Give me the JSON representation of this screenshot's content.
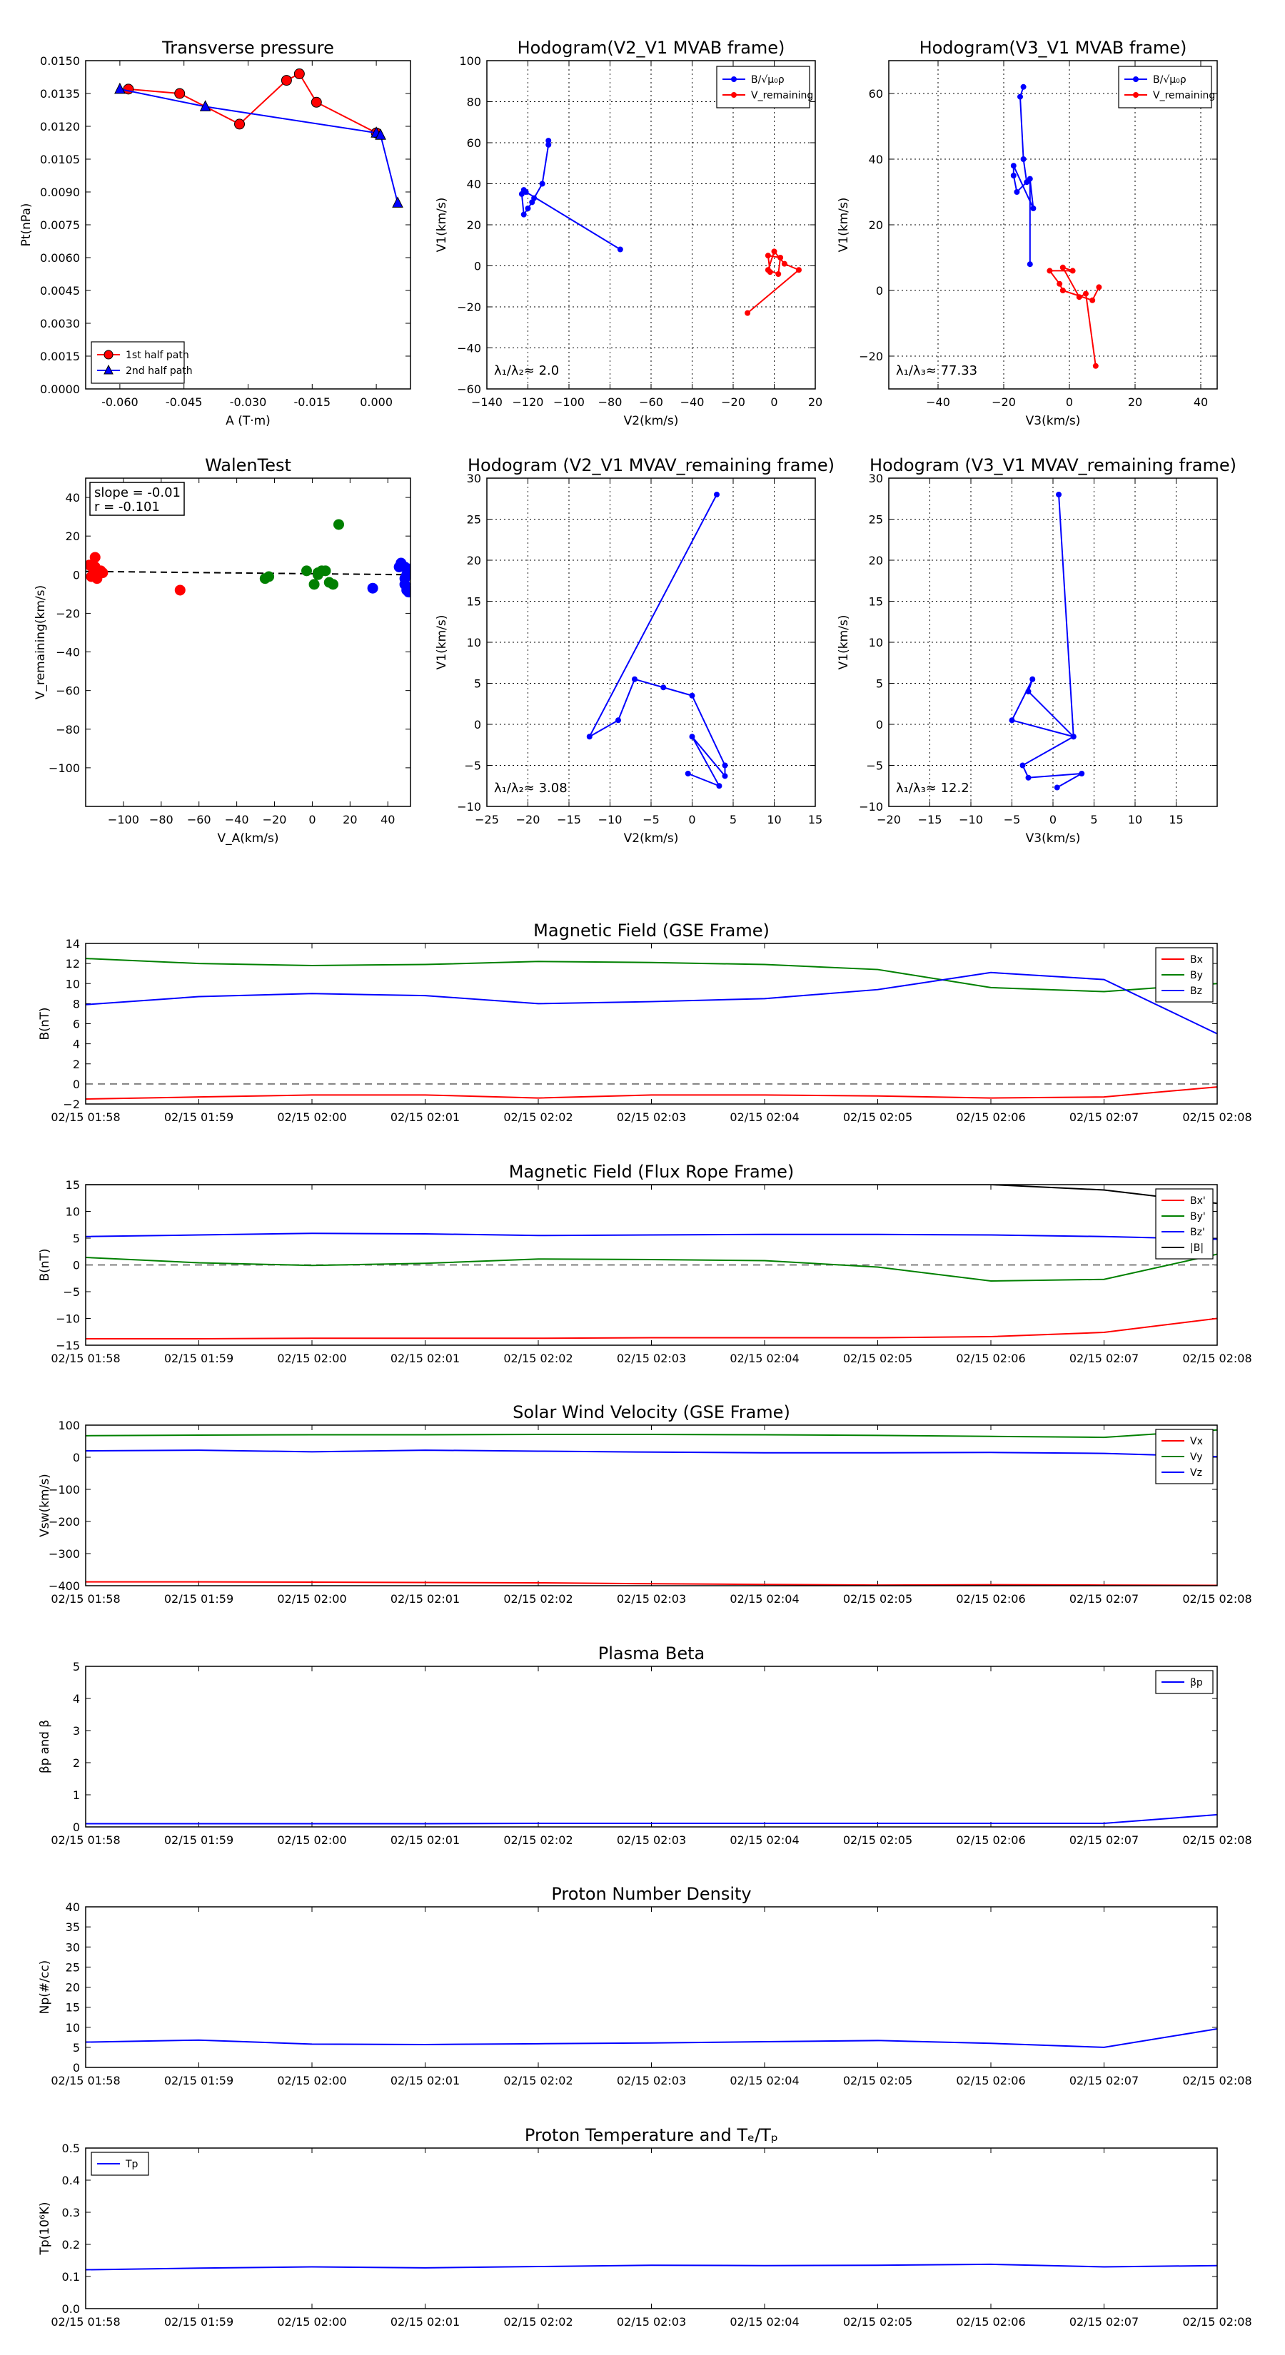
{
  "colors": {
    "blue": "#0000ff",
    "red": "#ff0000",
    "green": "#008000",
    "black": "#000000",
    "zero_line": "#808080"
  },
  "time_ticks": [
    "02/15 01:58",
    "02/15 01:59",
    "02/15 02:00",
    "02/15 02:01",
    "02/15 02:02",
    "02/15 02:03",
    "02/15 02:04",
    "02/15 02:05",
    "02/15 02:06",
    "02/15 02:07",
    "02/15 02:08"
  ],
  "chart_data": [
    {
      "id": "tp",
      "type": "line",
      "title": "Transverse pressure",
      "xlabel": "A (T·m)",
      "ylabel": "Pt(nPa)",
      "xlim": [
        -0.068,
        0.008
      ],
      "ylim": [
        0,
        0.015
      ],
      "xticks": [
        "-0.060",
        "-0.045",
        "-0.030",
        "-0.015",
        "0.000"
      ],
      "yticks": [
        "0.0000",
        "0.0015",
        "0.0030",
        "0.0045",
        "0.0060",
        "0.0075",
        "0.0090",
        "0.0105",
        "0.0120",
        "0.0135",
        "0.0150"
      ],
      "grid": false,
      "legend_position": "lower-left",
      "series": [
        {
          "name": "1st half path",
          "color": "red",
          "marker": "circle",
          "points": [
            [
              -0.058,
              0.0137
            ],
            [
              -0.046,
              0.0135
            ],
            [
              -0.032,
              0.0121
            ],
            [
              -0.021,
              0.0141
            ],
            [
              -0.018,
              0.0144
            ],
            [
              -0.014,
              0.0131
            ],
            [
              0.0,
              0.0117
            ]
          ]
        },
        {
          "name": "2nd half path",
          "color": "blue",
          "marker": "triangle",
          "points": [
            [
              -0.06,
              0.0137
            ],
            [
              -0.04,
              0.0129
            ],
            [
              0.0,
              0.0117
            ],
            [
              0.001,
              0.0116
            ],
            [
              0.005,
              0.0085
            ]
          ]
        }
      ]
    },
    {
      "id": "hodo_v2v1_mvab",
      "type": "line",
      "title": "Hodogram(V2_V1 MVAB frame)",
      "xlabel": "V2(km/s)",
      "ylabel": "V1(km/s)",
      "xlim": [
        -140,
        20
      ],
      "ylim": [
        -60,
        100
      ],
      "xticks": [
        "−140",
        "−120",
        "−100",
        "−80",
        "−60",
        "−40",
        "−20",
        "0",
        "20"
      ],
      "yticks": [
        "−60",
        "−40",
        "−20",
        "0",
        "20",
        "40",
        "60",
        "80",
        "100"
      ],
      "grid": true,
      "legend_position": "top-right",
      "annotation": "λ₁/λ₂≈ 2.0",
      "series": [
        {
          "name": "B/√μ₀ρ",
          "color": "blue",
          "points": [
            [
              -110,
              61
            ],
            [
              -110,
              59
            ],
            [
              -113,
              40
            ],
            [
              -117,
              33
            ],
            [
              -118,
              31
            ],
            [
              -120,
              28
            ],
            [
              -122,
              25
            ],
            [
              -123,
              35
            ],
            [
              -122,
              37
            ],
            [
              -121,
              36
            ],
            [
              -75,
              8
            ]
          ]
        },
        {
          "name": "V_remaining",
          "color": "red",
          "points": [
            [
              -13,
              -23
            ],
            [
              12,
              -2
            ],
            [
              5,
              1
            ],
            [
              0,
              7
            ],
            [
              -3,
              -2
            ],
            [
              2,
              -4
            ],
            [
              3,
              4
            ],
            [
              -3,
              5
            ],
            [
              -2,
              -3
            ]
          ]
        }
      ]
    },
    {
      "id": "hodo_v3v1_mvab",
      "type": "line",
      "title": "Hodogram(V3_V1 MVAB frame)",
      "xlabel": "V3(km/s)",
      "ylabel": "V1(km/s)",
      "xlim": [
        -55,
        45
      ],
      "ylim": [
        -30,
        70
      ],
      "xticks": [
        "−40",
        "−20",
        "0",
        "20",
        "40"
      ],
      "yticks": [
        "−20",
        "0",
        "20",
        "40",
        "60"
      ],
      "grid": true,
      "legend_position": "top-right",
      "annotation": "λ₁/λ₃≈ 77.33",
      "series": [
        {
          "name": "B/√μ₀ρ",
          "color": "blue",
          "points": [
            [
              -14,
              62
            ],
            [
              -15,
              59
            ],
            [
              -14,
              40
            ],
            [
              -13,
              33
            ],
            [
              -16,
              30
            ],
            [
              -17,
              35
            ],
            [
              -17,
              38
            ],
            [
              -11,
              25
            ],
            [
              -12,
              34
            ],
            [
              -12,
              8
            ]
          ]
        },
        {
          "name": "V_remaining",
          "color": "red",
          "points": [
            [
              8,
              -23
            ],
            [
              5,
              -1
            ],
            [
              3,
              -2
            ],
            [
              -2,
              7
            ],
            [
              1,
              6
            ],
            [
              -6,
              6
            ],
            [
              -3,
              2
            ],
            [
              -2,
              0
            ],
            [
              7,
              -3
            ],
            [
              9,
              1
            ]
          ]
        }
      ]
    },
    {
      "id": "walen",
      "type": "scatter",
      "title": "WalenTest",
      "xlabel": "V_A(km/s)",
      "ylabel": "V_remaining(km/s)",
      "xlim": [
        -120,
        52
      ],
      "ylim": [
        -120,
        50
      ],
      "xticks": [
        "−100",
        "−80",
        "−60",
        "−40",
        "−20",
        "0",
        "20",
        "40"
      ],
      "yticks": [
        "−100",
        "−80",
        "−60",
        "−40",
        "−20",
        "0",
        "20",
        "40"
      ],
      "grid": false,
      "fit_line": {
        "slope": -0.01,
        "intercept": 0.5
      },
      "annotation_lines": [
        "slope = -0.01",
        "r = -0.101"
      ],
      "groups": [
        {
          "color": "red",
          "points": [
            [
              -118,
              5
            ],
            [
              -116,
              3
            ],
            [
              -113,
              1
            ],
            [
              -114,
              -2
            ],
            [
              -115,
              4
            ],
            [
              -112,
              2
            ],
            [
              -117,
              -1
            ],
            [
              -115,
              9
            ],
            [
              -111,
              1
            ],
            [
              -116,
              0
            ],
            [
              -70,
              -8
            ]
          ]
        },
        {
          "color": "green",
          "points": [
            [
              -25,
              -2
            ],
            [
              -23,
              -1
            ],
            [
              -3,
              2
            ],
            [
              1,
              -5
            ],
            [
              3,
              1
            ],
            [
              5,
              2
            ],
            [
              7,
              2
            ],
            [
              9,
              -4
            ],
            [
              11,
              -5
            ],
            [
              14,
              26
            ],
            [
              3,
              0
            ]
          ]
        },
        {
          "color": "blue",
          "points": [
            [
              32,
              -7
            ],
            [
              46,
              4
            ],
            [
              47,
              6
            ],
            [
              49,
              4
            ],
            [
              49,
              -2
            ],
            [
              49,
              -5
            ],
            [
              50,
              -8
            ],
            [
              51,
              -9
            ],
            [
              52,
              3
            ],
            [
              50,
              0
            ]
          ]
        }
      ]
    },
    {
      "id": "hodo_v2v1_mvav",
      "type": "line",
      "title": "Hodogram (V2_V1 MVAV_remaining frame)",
      "xlabel": "V2(km/s)",
      "ylabel": "V1(km/s)",
      "xlim": [
        -25,
        15
      ],
      "ylim": [
        -10,
        30
      ],
      "xticks": [
        "−25",
        "−20",
        "−15",
        "−10",
        "−5",
        "0",
        "5",
        "10",
        "15"
      ],
      "yticks": [
        "−10",
        "−5",
        "0",
        "5",
        "10",
        "15",
        "20",
        "25",
        "30"
      ],
      "grid": true,
      "annotation": "λ₁/λ₂≈ 3.08",
      "series": [
        {
          "name": "",
          "color": "blue",
          "points": [
            [
              3,
              28
            ],
            [
              -12.5,
              -1.5
            ],
            [
              -9,
              0.5
            ],
            [
              -7,
              5.5
            ],
            [
              -3.5,
              4.5
            ],
            [
              0,
              3.5
            ],
            [
              4,
              -5
            ],
            [
              4,
              -6.3
            ],
            [
              0,
              -1.5
            ],
            [
              3.3,
              -7.5
            ],
            [
              -0.5,
              -6
            ]
          ]
        }
      ]
    },
    {
      "id": "hodo_v3v1_mvav",
      "type": "line",
      "title": "Hodogram (V3_V1 MVAV_remaining frame)",
      "xlabel": "V3(km/s)",
      "ylabel": "V1(km/s)",
      "xlim": [
        -20,
        20
      ],
      "ylim": [
        -10,
        30
      ],
      "xticks": [
        "−20",
        "−15",
        "−10",
        "−5",
        "0",
        "5",
        "10",
        "15"
      ],
      "yticks": [
        "−10",
        "−5",
        "0",
        "5",
        "10",
        "15",
        "20",
        "25",
        "30"
      ],
      "grid": true,
      "annotation": "λ₁/λ₃≈ 12.2",
      "series": [
        {
          "name": "",
          "color": "blue",
          "points": [
            [
              0.7,
              28
            ],
            [
              2.5,
              -1.5
            ],
            [
              -5,
              0.5
            ],
            [
              -2.5,
              5.5
            ],
            [
              -3,
              4
            ],
            [
              2.5,
              -1.5
            ],
            [
              -3.7,
              -5
            ],
            [
              -3,
              -6.5
            ],
            [
              3.5,
              -6
            ],
            [
              0.5,
              -7.7
            ]
          ]
        }
      ]
    },
    {
      "id": "bgse",
      "type": "line",
      "title": "Magnetic Field (GSE Frame)",
      "xlabel": "",
      "ylabel": "B(nT)",
      "ylim": [
        -2,
        14
      ],
      "yticks": [
        "−2",
        "0",
        "2",
        "4",
        "6",
        "8",
        "10",
        "12",
        "14"
      ],
      "zero_line": true,
      "legend_position": "top-right",
      "series": [
        {
          "name": "Bx",
          "color": "red",
          "values": [
            -1.5,
            -1.3,
            -1.1,
            -1.1,
            -1.4,
            -1.1,
            -1.1,
            -1.2,
            -1.4,
            -1.3,
            -0.3
          ]
        },
        {
          "name": "By",
          "color": "green",
          "values": [
            12.5,
            12.0,
            11.8,
            11.9,
            12.2,
            12.1,
            11.9,
            11.4,
            9.6,
            9.2,
            10.0
          ]
        },
        {
          "name": "Bz",
          "color": "blue",
          "values": [
            7.9,
            8.7,
            9.0,
            8.8,
            8.0,
            8.2,
            8.5,
            9.4,
            11.1,
            10.4,
            5.0
          ]
        }
      ]
    },
    {
      "id": "bfr",
      "type": "line",
      "title": "Magnetic Field (Flux Rope Frame)",
      "xlabel": "",
      "ylabel": "B(nT)",
      "ylim": [
        -15,
        15
      ],
      "yticks": [
        "−15",
        "−10",
        "−5",
        "0",
        "5",
        "10",
        "15"
      ],
      "zero_line": true,
      "legend_position": "top-right",
      "series": [
        {
          "name": "Bx'",
          "color": "red",
          "values": [
            -13.8,
            -13.8,
            -13.7,
            -13.7,
            -13.7,
            -13.6,
            -13.6,
            -13.6,
            -13.4,
            -12.6,
            -10.0
          ]
        },
        {
          "name": "By'",
          "color": "green",
          "values": [
            1.4,
            0.4,
            -0.1,
            0.3,
            1.1,
            1.0,
            0.8,
            -0.4,
            -3.0,
            -2.7,
            2.0
          ]
        },
        {
          "name": "Bz'",
          "color": "blue",
          "values": [
            5.3,
            5.6,
            5.9,
            5.8,
            5.5,
            5.6,
            5.7,
            5.7,
            5.6,
            5.3,
            4.8
          ]
        },
        {
          "name": "|B|",
          "color": "black",
          "values": [
            15.0,
            15.0,
            15.0,
            15.0,
            15.0,
            15.0,
            15.0,
            15.0,
            15.0,
            14.0,
            11.5
          ]
        }
      ]
    },
    {
      "id": "vsw",
      "type": "line",
      "title": "Solar Wind Velocity (GSE Frame)",
      "xlabel": "",
      "ylabel": "Vsw(km/s)",
      "ylim": [
        -400,
        100
      ],
      "yticks": [
        "−400",
        "−300",
        "−200",
        "−100",
        "0",
        "100"
      ],
      "legend_position": "top-right",
      "series": [
        {
          "name": "Vx",
          "color": "red",
          "values": [
            -388,
            -388,
            -389,
            -390,
            -391,
            -394,
            -396,
            -398,
            -397,
            -398,
            -399
          ]
        },
        {
          "name": "Vy",
          "color": "green",
          "values": [
            67,
            69,
            70,
            70,
            71,
            71,
            70,
            68,
            65,
            62,
            85
          ]
        },
        {
          "name": "Vz",
          "color": "blue",
          "values": [
            20,
            22,
            17,
            22,
            19,
            16,
            14,
            14,
            15,
            12,
            2
          ]
        }
      ]
    },
    {
      "id": "beta",
      "type": "line",
      "title": "Plasma Beta",
      "xlabel": "",
      "ylabel": "βp and β",
      "ylim": [
        0,
        5
      ],
      "yticks": [
        "0",
        "1",
        "2",
        "3",
        "4",
        "5"
      ],
      "legend_position": "top-right",
      "series": [
        {
          "name": "βp",
          "color": "blue",
          "values": [
            0.1,
            0.1,
            0.1,
            0.1,
            0.11,
            0.11,
            0.11,
            0.11,
            0.11,
            0.11,
            0.38
          ]
        }
      ]
    },
    {
      "id": "np",
      "type": "line",
      "title": "Proton Number Density",
      "xlabel": "",
      "ylabel": "Np(#/cc)",
      "ylim": [
        0,
        40
      ],
      "yticks": [
        "0",
        "5",
        "10",
        "15",
        "20",
        "25",
        "30",
        "35",
        "40"
      ],
      "series": [
        {
          "name": "",
          "color": "blue",
          "values": [
            6.3,
            6.8,
            5.8,
            5.7,
            5.9,
            6.1,
            6.4,
            6.7,
            6.0,
            5.0,
            9.6
          ]
        }
      ]
    },
    {
      "id": "tp_temp",
      "type": "line",
      "title": "Proton Temperature and Tₑ/Tₚ",
      "xlabel": "",
      "ylabel": "Tp(10⁶K)",
      "ylim": [
        0,
        0.5
      ],
      "yticks": [
        "0.0",
        "0.1",
        "0.2",
        "0.3",
        "0.4",
        "0.5"
      ],
      "legend_position": "top-left",
      "series": [
        {
          "name": "Tp",
          "color": "blue",
          "values": [
            0.121,
            0.126,
            0.13,
            0.127,
            0.131,
            0.135,
            0.134,
            0.135,
            0.138,
            0.13,
            0.134
          ]
        }
      ]
    }
  ]
}
